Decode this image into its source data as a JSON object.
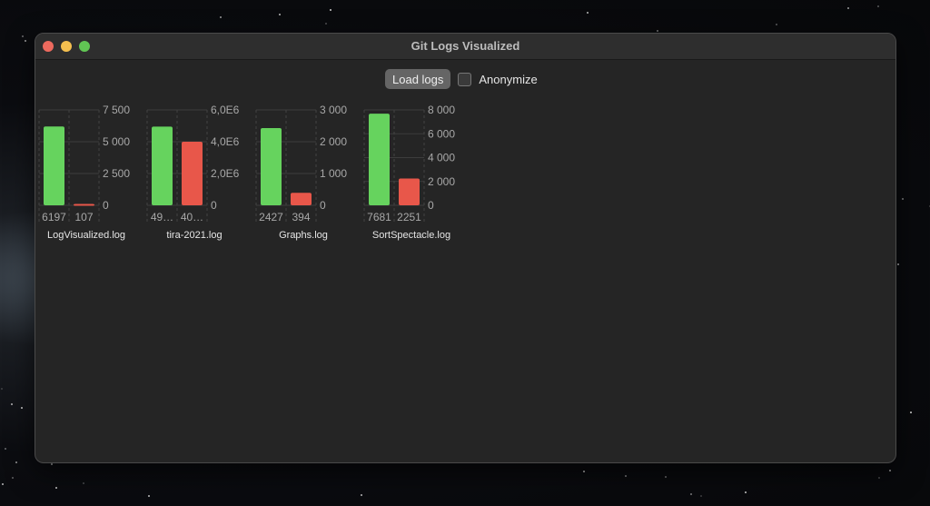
{
  "window": {
    "title": "Git Logs Visualized"
  },
  "toolbar": {
    "load_label": "Load logs",
    "anonymize_label": "Anonymize",
    "anonymize_checked": false
  },
  "colors": {
    "green": "#66d35e",
    "red": "#e8574a"
  },
  "chart_data": [
    {
      "type": "bar",
      "title": "LogVisualized.log",
      "categories": [
        "6197",
        "107"
      ],
      "values": [
        6197,
        107
      ],
      "ylim": [
        0,
        7500
      ],
      "yticks": [
        "0",
        "2 500",
        "5 000",
        "7 500"
      ],
      "grid": true
    },
    {
      "type": "bar",
      "title": "tira-2021.log",
      "categories": [
        "49…",
        "40…"
      ],
      "values": [
        4950000,
        4000000
      ],
      "ylim": [
        0,
        6000000
      ],
      "yticks": [
        "0",
        "2,0E6",
        "4,0E6",
        "6,0E6"
      ],
      "grid": true
    },
    {
      "type": "bar",
      "title": "Graphs.log",
      "categories": [
        "2427",
        "394"
      ],
      "values": [
        2427,
        394
      ],
      "ylim": [
        0,
        3000
      ],
      "yticks": [
        "0",
        "1 000",
        "2 000",
        "3 000"
      ],
      "grid": true
    },
    {
      "type": "bar",
      "title": "SortSpectacle.log",
      "categories": [
        "7681",
        "2251"
      ],
      "values": [
        7681,
        2251
      ],
      "ylim": [
        0,
        8000
      ],
      "yticks": [
        "0",
        "2 000",
        "4 000",
        "6 000",
        "8 000"
      ],
      "grid": true
    }
  ]
}
